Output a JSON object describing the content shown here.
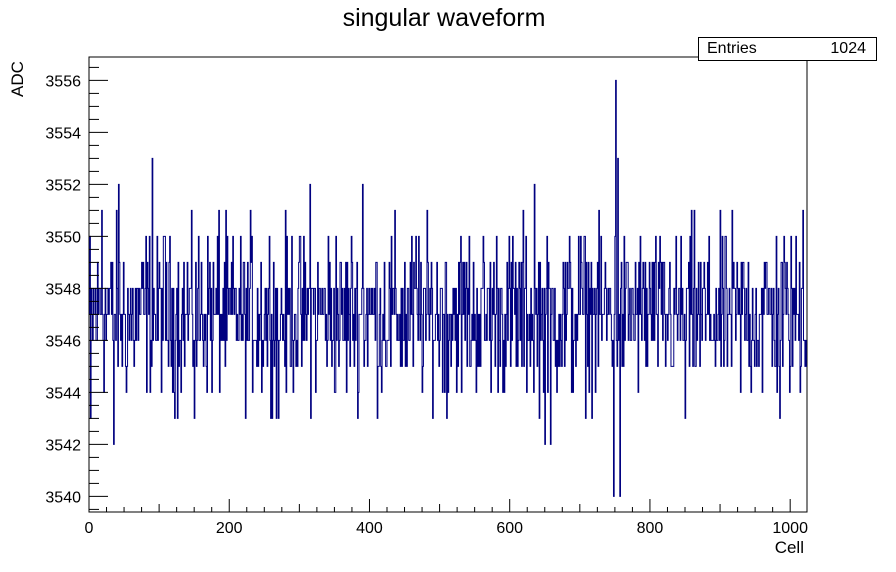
{
  "chart_data": {
    "type": "line",
    "title": "singular waveform",
    "xlabel": "Cell",
    "ylabel": "ADC",
    "xlim": [
      0,
      1024
    ],
    "ylim": [
      3539.4,
      3556.9
    ],
    "x_ticks": [
      0,
      200,
      400,
      600,
      800,
      1000
    ],
    "y_ticks": [
      3540,
      3542,
      3544,
      3546,
      3548,
      3550,
      3552,
      3554,
      3556
    ],
    "legend": {
      "entries_label": "Entries",
      "entries_value": "1024"
    },
    "series": [
      {
        "color": "#000080",
        "baseline": 3547,
        "noise_amplitude": 2,
        "spikes": [
          {
            "x": 2,
            "y": 3543
          },
          {
            "x": 18,
            "y": 3551
          },
          {
            "x": 35,
            "y": 3542
          },
          {
            "x": 42,
            "y": 3552
          },
          {
            "x": 90,
            "y": 3553
          },
          {
            "x": 150,
            "y": 3543
          },
          {
            "x": 185,
            "y": 3551
          },
          {
            "x": 270,
            "y": 3543
          },
          {
            "x": 315,
            "y": 3552
          },
          {
            "x": 390,
            "y": 3552
          },
          {
            "x": 510,
            "y": 3543
          },
          {
            "x": 635,
            "y": 3552
          },
          {
            "x": 650,
            "y": 3542
          },
          {
            "x": 658,
            "y": 3542
          },
          {
            "x": 748,
            "y": 3540
          },
          {
            "x": 751,
            "y": 3556
          },
          {
            "x": 754,
            "y": 3553
          },
          {
            "x": 757,
            "y": 3540
          },
          {
            "x": 850,
            "y": 3543
          },
          {
            "x": 985,
            "y": 3543
          },
          {
            "x": 1018,
            "y": 3551
          }
        ]
      }
    ]
  }
}
